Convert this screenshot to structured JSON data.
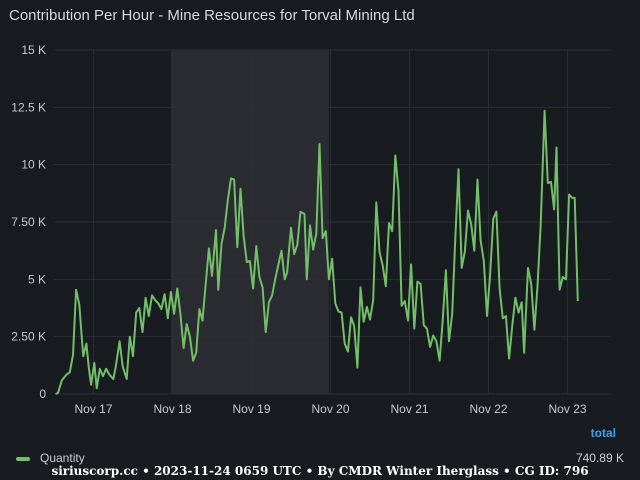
{
  "panel": {
    "title": "Contribution Per Hour - Mine Resources for Torval Mining Ltd"
  },
  "legend": {
    "total_label": "total",
    "series_name": "Quantity",
    "series_total": "740.89 K",
    "series_color": "#73bf69"
  },
  "footer": {
    "text": "siriuscorp.cc • 2023-11-24 0659 UTC • By CMDR Winter Iherglass • CG ID: 796"
  },
  "chart_data": {
    "type": "line",
    "title": "Contribution Per Hour - Mine Resources for Torval Mining Ltd",
    "xlabel": "",
    "ylabel": "",
    "x_ticks": [
      "Nov 17",
      "Nov 18",
      "Nov 19",
      "Nov 20",
      "Nov 21",
      "Nov 22",
      "Nov 23"
    ],
    "y_ticks": [
      "0",
      "2.50 K",
      "5 K",
      "7.50 K",
      "10 K",
      "12.5 K",
      "15 K"
    ],
    "ylim": [
      0,
      15000
    ],
    "xlim_days": [
      16.5,
      23.55
    ],
    "grid": true,
    "legend_position": "bottom",
    "highlight_band_days": [
      17.98,
      19.98
    ],
    "series": [
      {
        "name": "Quantity",
        "color": "#73bf69",
        "points": [
          [
            16.52,
            0
          ],
          [
            16.55,
            50
          ],
          [
            16.6,
            600
          ],
          [
            16.65,
            820
          ],
          [
            16.7,
            950
          ],
          [
            16.74,
            1700
          ],
          [
            16.78,
            4550
          ],
          [
            16.82,
            3900
          ],
          [
            16.87,
            1650
          ],
          [
            16.91,
            2200
          ],
          [
            16.94,
            1150
          ],
          [
            16.97,
            400
          ],
          [
            17.01,
            1350
          ],
          [
            17.04,
            250
          ],
          [
            17.08,
            1100
          ],
          [
            17.12,
            780
          ],
          [
            17.16,
            1100
          ],
          [
            17.2,
            850
          ],
          [
            17.25,
            650
          ],
          [
            17.28,
            1150
          ],
          [
            17.33,
            2300
          ],
          [
            17.37,
            1200
          ],
          [
            17.42,
            650
          ],
          [
            17.46,
            2500
          ],
          [
            17.5,
            1650
          ],
          [
            17.54,
            3550
          ],
          [
            17.58,
            3750
          ],
          [
            17.62,
            2700
          ],
          [
            17.66,
            4200
          ],
          [
            17.7,
            3400
          ],
          [
            17.74,
            4300
          ],
          [
            17.78,
            4100
          ],
          [
            17.82,
            3950
          ],
          [
            17.86,
            3700
          ],
          [
            17.9,
            4350
          ],
          [
            17.94,
            3300
          ],
          [
            17.98,
            4450
          ],
          [
            18.02,
            3500
          ],
          [
            18.06,
            4600
          ],
          [
            18.1,
            3500
          ],
          [
            18.14,
            2000
          ],
          [
            18.18,
            3050
          ],
          [
            18.22,
            2500
          ],
          [
            18.26,
            1450
          ],
          [
            18.3,
            1800
          ],
          [
            18.34,
            3700
          ],
          [
            18.38,
            3200
          ],
          [
            18.42,
            4800
          ],
          [
            18.46,
            6350
          ],
          [
            18.5,
            5150
          ],
          [
            18.55,
            7150
          ],
          [
            18.58,
            4550
          ],
          [
            18.62,
            6550
          ],
          [
            18.66,
            7250
          ],
          [
            18.7,
            8450
          ],
          [
            18.74,
            9400
          ],
          [
            18.78,
            9350
          ],
          [
            18.82,
            6400
          ],
          [
            18.86,
            8950
          ],
          [
            18.9,
            6900
          ],
          [
            18.94,
            5750
          ],
          [
            18.98,
            5800
          ],
          [
            19.02,
            4600
          ],
          [
            19.06,
            6450
          ],
          [
            19.1,
            5100
          ],
          [
            19.14,
            4650
          ],
          [
            19.18,
            2700
          ],
          [
            19.22,
            4000
          ],
          [
            19.26,
            4300
          ],
          [
            19.3,
            5000
          ],
          [
            19.34,
            5650
          ],
          [
            19.38,
            6250
          ],
          [
            19.42,
            5000
          ],
          [
            19.45,
            5300
          ],
          [
            19.5,
            7250
          ],
          [
            19.54,
            6100
          ],
          [
            19.58,
            6500
          ],
          [
            19.62,
            7950
          ],
          [
            19.67,
            7850
          ],
          [
            19.7,
            5000
          ],
          [
            19.74,
            7350
          ],
          [
            19.78,
            6300
          ],
          [
            19.82,
            7000
          ],
          [
            19.86,
            10900
          ],
          [
            19.9,
            6800
          ],
          [
            19.94,
            7100
          ],
          [
            19.98,
            5000
          ],
          [
            20.02,
            5900
          ],
          [
            20.06,
            3950
          ],
          [
            20.1,
            3600
          ],
          [
            20.14,
            3550
          ],
          [
            20.18,
            2200
          ],
          [
            20.22,
            1850
          ],
          [
            20.26,
            3350
          ],
          [
            20.3,
            2950
          ],
          [
            20.34,
            1150
          ],
          [
            20.38,
            4650
          ],
          [
            20.42,
            3150
          ],
          [
            20.46,
            3800
          ],
          [
            20.5,
            3250
          ],
          [
            20.54,
            4100
          ],
          [
            20.58,
            8350
          ],
          [
            20.62,
            6200
          ],
          [
            20.66,
            5600
          ],
          [
            20.7,
            4700
          ],
          [
            20.74,
            7450
          ],
          [
            20.78,
            7100
          ],
          [
            20.82,
            10400
          ],
          [
            20.86,
            8850
          ],
          [
            20.9,
            3850
          ],
          [
            20.94,
            4050
          ],
          [
            20.98,
            3200
          ],
          [
            21.02,
            5650
          ],
          [
            21.06,
            2850
          ],
          [
            21.1,
            4900
          ],
          [
            21.14,
            4800
          ],
          [
            21.18,
            3000
          ],
          [
            21.22,
            2850
          ],
          [
            21.26,
            2050
          ],
          [
            21.3,
            2550
          ],
          [
            21.34,
            2300
          ],
          [
            21.38,
            1450
          ],
          [
            21.42,
            3200
          ],
          [
            21.46,
            5400
          ],
          [
            21.5,
            2300
          ],
          [
            21.54,
            3500
          ],
          [
            21.58,
            6900
          ],
          [
            21.62,
            9800
          ],
          [
            21.66,
            5500
          ],
          [
            21.7,
            6200
          ],
          [
            21.74,
            8000
          ],
          [
            21.78,
            7400
          ],
          [
            21.82,
            6250
          ],
          [
            21.86,
            9350
          ],
          [
            21.9,
            6700
          ],
          [
            21.94,
            5800
          ],
          [
            21.98,
            3400
          ],
          [
            22.02,
            5200
          ],
          [
            22.06,
            7650
          ],
          [
            22.1,
            7950
          ],
          [
            22.14,
            4600
          ],
          [
            22.18,
            3300
          ],
          [
            22.22,
            3400
          ],
          [
            22.26,
            1550
          ],
          [
            22.3,
            2950
          ],
          [
            22.34,
            4200
          ],
          [
            22.38,
            3550
          ],
          [
            22.42,
            4000
          ],
          [
            22.45,
            1800
          ],
          [
            22.5,
            5500
          ],
          [
            22.54,
            4800
          ],
          [
            22.58,
            2800
          ],
          [
            22.62,
            4700
          ],
          [
            22.66,
            7400
          ],
          [
            22.71,
            12350
          ],
          [
            22.75,
            9200
          ],
          [
            22.79,
            9250
          ],
          [
            22.83,
            8050
          ],
          [
            22.86,
            10750
          ],
          [
            22.9,
            4550
          ],
          [
            22.94,
            5100
          ],
          [
            22.98,
            5000
          ],
          [
            23.02,
            8700
          ],
          [
            23.06,
            8550
          ],
          [
            23.09,
            8550
          ],
          [
            23.13,
            4050
          ]
        ]
      }
    ]
  }
}
